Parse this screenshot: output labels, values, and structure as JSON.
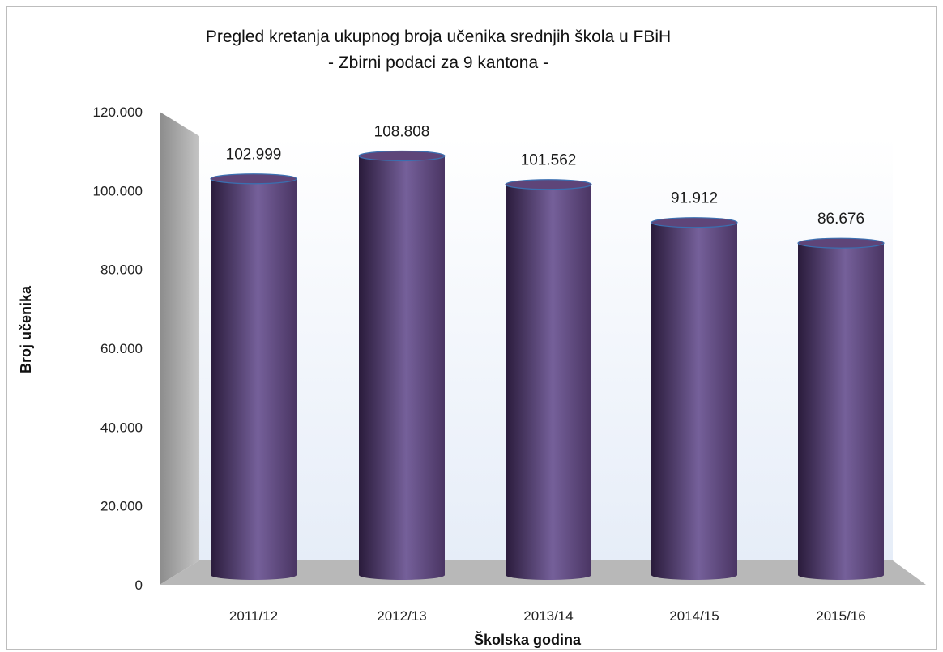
{
  "chart_data": {
    "type": "bar",
    "title": "Pregled kretanja ukupnog broja učenika srednjih škola u FBiH",
    "subtitle": "- Zbirni podaci za 9 kantona -",
    "xlabel": "Školska godina",
    "ylabel": "Broj učenika",
    "categories": [
      "2011/12",
      "2012/13",
      "2013/14",
      "2014/15",
      "2015/16"
    ],
    "values": [
      102999,
      108808,
      101562,
      91912,
      86676
    ],
    "data_labels": [
      "102.999",
      "108.808",
      "101.562",
      "91.912",
      "86.676"
    ],
    "ylim": [
      0,
      120000
    ],
    "yticks": [
      0,
      20000,
      40000,
      60000,
      80000,
      100000,
      120000
    ],
    "ytick_labels": [
      "0",
      "20.000",
      "40.000",
      "60.000",
      "80.000",
      "100.000",
      "120.000"
    ],
    "grid": false,
    "legend": "none",
    "colors": {
      "bar_dark": "#2a1b3b",
      "bar_mid": "#5e4579",
      "bar_light": "#75609a",
      "wall": "#eef3fb",
      "floor": "#b3b3b3",
      "side_wall": "#9a9a9a"
    }
  }
}
